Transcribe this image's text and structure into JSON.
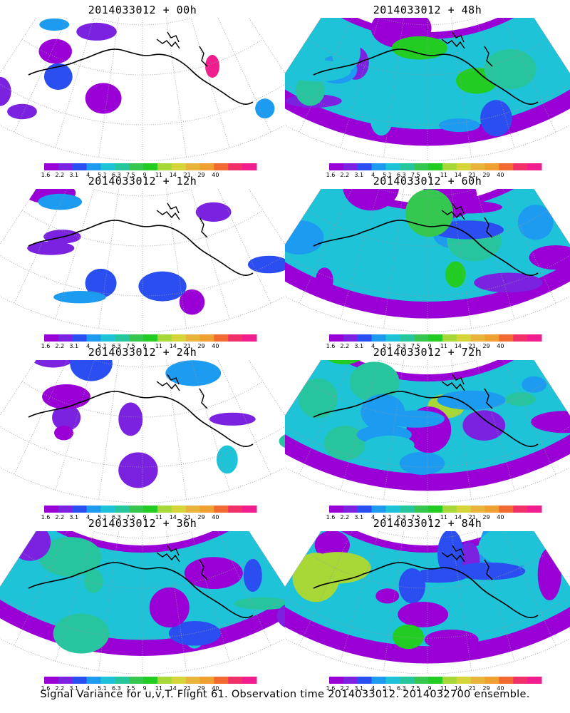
{
  "panels": [
    {
      "title": "2014033012 + 00h",
      "intensity": 0.15,
      "hotspot": "pink"
    },
    {
      "title": "2014033012 + 48h",
      "intensity": 0.65
    },
    {
      "title": "2014033012 + 12h",
      "intensity": 0.25
    },
    {
      "title": "2014033012 + 60h",
      "intensity": 0.72
    },
    {
      "title": "2014033012 + 24h",
      "intensity": 0.35
    },
    {
      "title": "2014033012 + 72h",
      "intensity": 0.78
    },
    {
      "title": "2014033012 + 36h",
      "intensity": 0.5
    },
    {
      "title": "2014033012 + 84h",
      "intensity": 0.85
    }
  ],
  "colorbar": {
    "labels": [
      "1.6",
      "2.2",
      "3.1",
      "4",
      "5.1",
      "6.3",
      "7.5",
      "9",
      "11",
      "14",
      "21",
      "29",
      "40"
    ],
    "colors": [
      "#9a00d6",
      "#7a22e0",
      "#2b4ef0",
      "#1c9bf0",
      "#1fc3d8",
      "#27c59e",
      "#35c850",
      "#22cc22",
      "#a8d838",
      "#d6d63a",
      "#e8b43a",
      "#f0a030",
      "#f06a30",
      "#f0306a",
      "#f01e8c"
    ]
  },
  "caption": "Signal Variance for u,v,T. Flight 61. Observation time 2014033012. 2014032700 ensemble."
}
